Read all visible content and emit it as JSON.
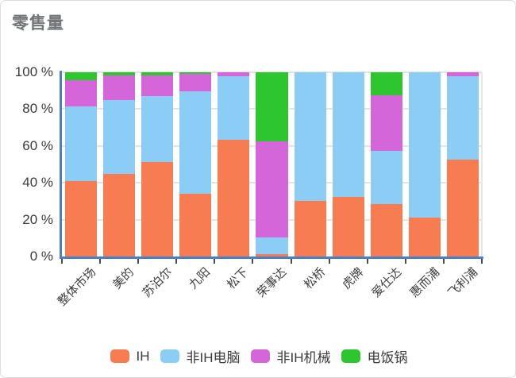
{
  "title": "零售量",
  "colors": {
    "axis": "#4a7fc1",
    "grid": "#e4e4e4",
    "tick": "#4a4a4a",
    "title_text": "#737679",
    "axis_label_text": "#3a3a3a",
    "legend_text": "#3b3b3b",
    "series_ih": "#f87c51",
    "series_fei_ih_diannao": "#8bcdf4",
    "series_fei_ih_jixie": "#d466da",
    "series_dianfanguo": "#2ec62e"
  },
  "chart_data": {
    "type": "bar",
    "stacked": true,
    "unit": "%",
    "title": "零售量",
    "xlabel": "",
    "ylabel": "",
    "ylim": [
      0,
      100
    ],
    "grid": true,
    "legend_position": "bottom",
    "y_ticks": [
      {
        "value": 100,
        "label": "100 %"
      },
      {
        "value": 80,
        "label": "80 %"
      },
      {
        "value": 60,
        "label": "60 %"
      },
      {
        "value": 40,
        "label": "40 %"
      },
      {
        "value": 20,
        "label": "20 %"
      },
      {
        "value": 0,
        "label": "0 %"
      }
    ],
    "categories": [
      "整体市场",
      "美的",
      "苏泊尔",
      "九阳",
      "松下",
      "荣事达",
      "松桥",
      "虎牌",
      "爱仕达",
      "惠而浦",
      "飞利浦"
    ],
    "series": [
      {
        "name": "IH",
        "color": "#f87c51",
        "values": [
          41,
          45,
          51.5,
          34,
          63.5,
          1.5,
          30,
          32.5,
          28.5,
          21,
          52.5
        ]
      },
      {
        "name": "非IH电脑",
        "color": "#8bcdf4",
        "values": [
          40.5,
          40,
          35.5,
          55.5,
          34.5,
          9,
          70,
          67.5,
          29,
          79,
          45.5
        ]
      },
      {
        "name": "非IH机械",
        "color": "#d466da",
        "values": [
          14,
          13.5,
          11.5,
          9.5,
          2,
          52,
          0,
          0,
          30,
          0,
          2
        ]
      },
      {
        "name": "电饭锅",
        "color": "#2ec62e",
        "values": [
          4.5,
          1.5,
          1.5,
          1,
          0,
          37.5,
          0,
          0,
          12.5,
          0,
          0
        ]
      }
    ]
  }
}
